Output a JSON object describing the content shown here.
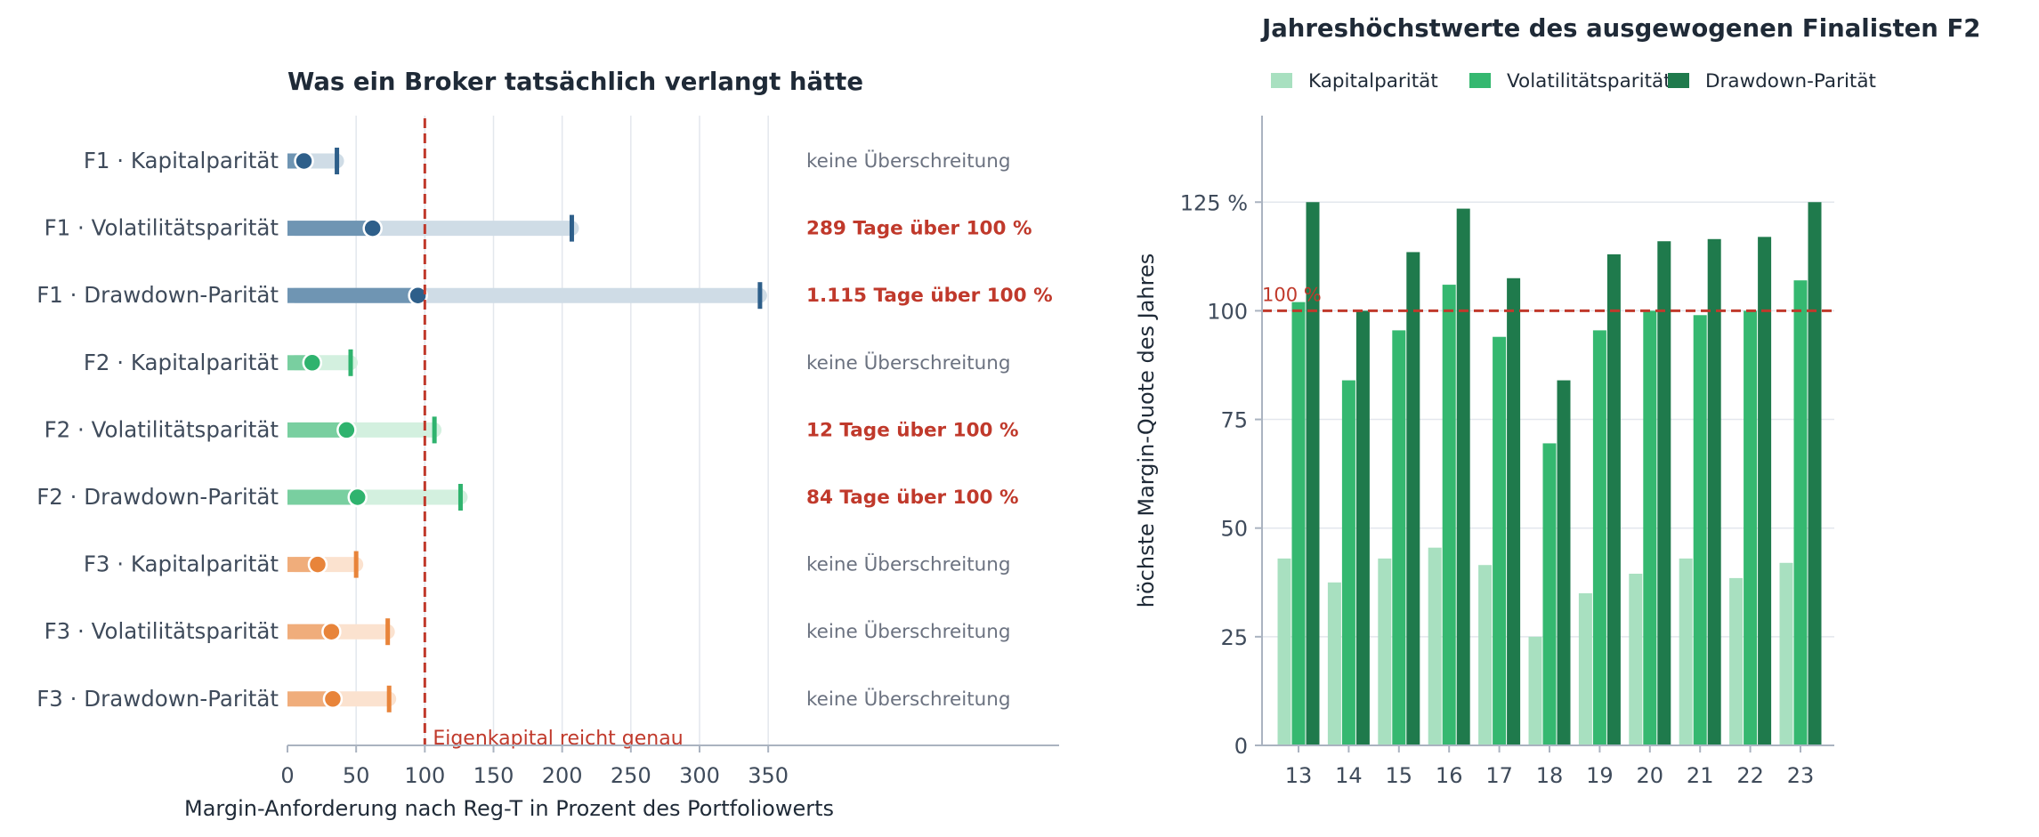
{
  "chart_data": [
    {
      "type": "bar",
      "title": "Was ein Broker tatsächlich verlangt hätte",
      "xlabel": "Margin-Anforderung nach Reg-T in Prozent des Portfoliowerts",
      "xlim": [
        0,
        560
      ],
      "xticks": [
        "0",
        "50",
        "100",
        "150",
        "200",
        "250",
        "300",
        "350"
      ],
      "reference_line": {
        "value": 100,
        "label": "Eigenkapital reicht genau",
        "color": "#c0392b"
      },
      "legend": "none",
      "grid": "vertical",
      "rows": [
        {
          "label": "F1 · Kapitalparität",
          "typical": 12,
          "upper": 36,
          "max": 36,
          "note": "keine Überschreitung",
          "exceed": false,
          "color": "#2e5f8a",
          "light": "#cfdce6",
          "mid": "#6f95b3"
        },
        {
          "label": "F1 · Volatilitätsparität",
          "typical": 62,
          "upper": 207,
          "max": 207,
          "note": "289 Tage über 100 %",
          "exceed": true,
          "color": "#2e5f8a",
          "light": "#cfdce6",
          "mid": "#6f95b3"
        },
        {
          "label": "F1 · Drawdown-Parität",
          "typical": 95,
          "upper": 344,
          "max": 344,
          "note": "1.115 Tage über 100 %",
          "exceed": true,
          "color": "#2e5f8a",
          "light": "#cfdce6",
          "mid": "#6f95b3"
        },
        {
          "label": "F2 · Kapitalparität",
          "typical": 18,
          "upper": 46,
          "max": 46,
          "note": "keine Überschreitung",
          "exceed": false,
          "color": "#2fb36e",
          "light": "#d3f0df",
          "mid": "#79cfa0"
        },
        {
          "label": "F2 · Volatilitätsparität",
          "typical": 43,
          "upper": 107,
          "max": 107,
          "note": "12 Tage über 100 %",
          "exceed": true,
          "color": "#2fb36e",
          "light": "#d3f0df",
          "mid": "#79cfa0"
        },
        {
          "label": "F2 · Drawdown-Parität",
          "typical": 51,
          "upper": 126,
          "max": 126,
          "note": "84 Tage über 100 %",
          "exceed": true,
          "color": "#2fb36e",
          "light": "#d3f0df",
          "mid": "#79cfa0"
        },
        {
          "label": "F3 · Kapitalparität",
          "typical": 22,
          "upper": 50,
          "max": 50,
          "note": "keine Überschreitung",
          "exceed": false,
          "color": "#e8843a",
          "light": "#fbe2cf",
          "mid": "#f0ad7b"
        },
        {
          "label": "F3 · Volatilitätsparität",
          "typical": 32,
          "upper": 73,
          "max": 73,
          "note": "keine Überschreitung",
          "exceed": false,
          "color": "#e8843a",
          "light": "#fbe2cf",
          "mid": "#f0ad7b"
        },
        {
          "label": "F3 · Drawdown-Parität",
          "typical": 33,
          "upper": 74,
          "max": 74,
          "note": "keine Überschreitung",
          "exceed": false,
          "color": "#e8843a",
          "light": "#fbe2cf",
          "mid": "#f0ad7b"
        }
      ],
      "exceed_color": "#c0392b",
      "ok_color": "#6b7280"
    },
    {
      "type": "bar",
      "title": "Jahreshöchstwerte des ausgewogenen Finalisten F2",
      "ylabel": "höchste Margin-Quote des Jahres",
      "categories": [
        "13",
        "14",
        "15",
        "16",
        "17",
        "18",
        "19",
        "20",
        "21",
        "22",
        "23"
      ],
      "yticks": [
        "0",
        "25",
        "50",
        "75",
        "100",
        "125 %"
      ],
      "ytick_values": [
        0,
        25,
        50,
        75,
        100,
        125
      ],
      "ylim": [
        0,
        145
      ],
      "grid": "horizontal",
      "legend": "top-left",
      "reference_line": {
        "value": 100,
        "label": "100 %",
        "color": "#c0392b"
      },
      "series": [
        {
          "name": "Kapitalparität",
          "color": "#a8e0c0",
          "values": [
            43,
            37.5,
            43,
            45.5,
            41.5,
            25,
            35,
            39.5,
            43,
            38.5,
            42
          ]
        },
        {
          "name": "Volatilitätsparität",
          "color": "#35b870",
          "values": [
            102,
            84,
            95.5,
            106,
            94,
            69.5,
            95.5,
            100,
            99,
            100,
            107
          ]
        },
        {
          "name": "Drawdown-Parität",
          "color": "#1f7a4c",
          "values": [
            125,
            100,
            113.5,
            123.5,
            107.5,
            84,
            113,
            116,
            116.5,
            117,
            125
          ]
        }
      ]
    }
  ]
}
